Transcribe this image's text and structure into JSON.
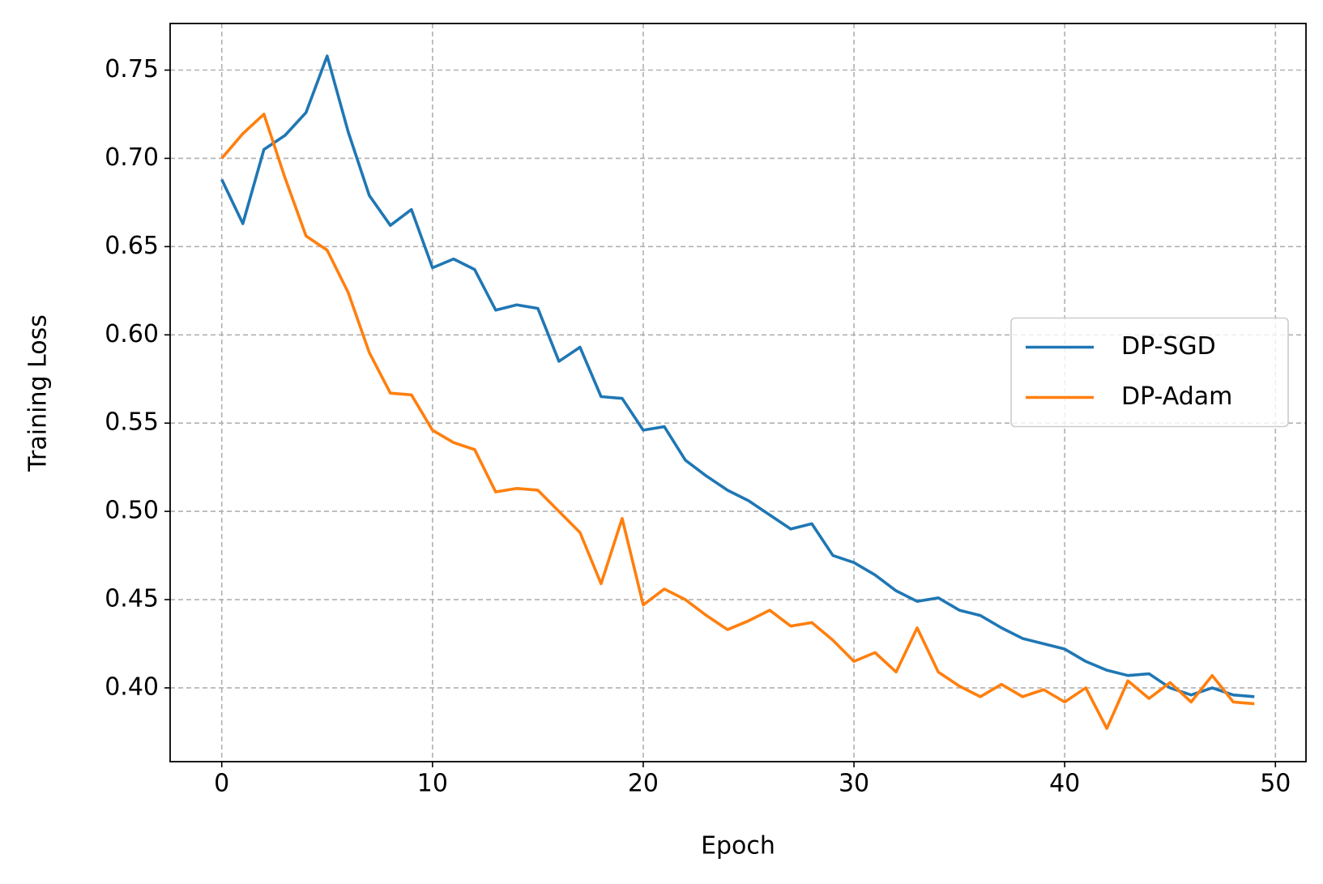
{
  "chart_data": {
    "type": "line",
    "x_label": "Epoch",
    "y_label": "Training Loss",
    "x": [
      0,
      1,
      2,
      3,
      4,
      5,
      6,
      7,
      8,
      9,
      10,
      11,
      12,
      13,
      14,
      15,
      16,
      17,
      18,
      19,
      20,
      21,
      22,
      23,
      24,
      25,
      26,
      27,
      28,
      29,
      30,
      31,
      32,
      33,
      34,
      35,
      36,
      37,
      38,
      39,
      40,
      41,
      42,
      43,
      44,
      45,
      46,
      47,
      48,
      49
    ],
    "series": [
      {
        "name": "DP-SGD",
        "color": "#1f77b4",
        "values": [
          0.688,
          0.663,
          0.705,
          0.713,
          0.726,
          0.758,
          0.715,
          0.679,
          0.662,
          0.671,
          0.638,
          0.643,
          0.637,
          0.614,
          0.617,
          0.615,
          0.585,
          0.593,
          0.565,
          0.564,
          0.546,
          0.548,
          0.529,
          0.52,
          0.512,
          0.506,
          0.498,
          0.49,
          0.493,
          0.475,
          0.471,
          0.464,
          0.455,
          0.449,
          0.451,
          0.444,
          0.441,
          0.434,
          0.428,
          0.425,
          0.422,
          0.415,
          0.41,
          0.407,
          0.408,
          0.4,
          0.396,
          0.4,
          0.396,
          0.395
        ]
      },
      {
        "name": "DP-Adam",
        "color": "#ff7f0e",
        "values": [
          0.7,
          0.714,
          0.725,
          0.689,
          0.656,
          0.648,
          0.624,
          0.59,
          0.567,
          0.566,
          0.546,
          0.539,
          0.535,
          0.511,
          0.513,
          0.512,
          0.5,
          0.488,
          0.459,
          0.496,
          0.447,
          0.456,
          0.45,
          0.441,
          0.433,
          0.438,
          0.444,
          0.435,
          0.437,
          0.427,
          0.415,
          0.42,
          0.409,
          0.434,
          0.409,
          0.401,
          0.395,
          0.402,
          0.395,
          0.399,
          0.392,
          0.4,
          0.377,
          0.404,
          0.394,
          0.403,
          0.392,
          0.407,
          0.392,
          0.391
        ]
      }
    ],
    "xlim": [
      -2.45,
      51.45
    ],
    "xticks": [
      0,
      10,
      20,
      30,
      40,
      50
    ],
    "ylim": [
      0.3582,
      0.7764
    ],
    "yticks": [
      {
        "value": 0.4,
        "label": "0.40"
      },
      {
        "value": 0.45,
        "label": "0.45"
      },
      {
        "value": 0.5,
        "label": "0.50"
      },
      {
        "value": 0.55,
        "label": "0.55"
      },
      {
        "value": 0.6,
        "label": "0.60"
      },
      {
        "value": 0.65,
        "label": "0.65"
      },
      {
        "value": 0.7,
        "label": "0.70"
      },
      {
        "value": 0.75,
        "label": "0.75"
      }
    ],
    "grid": true,
    "legend": "right"
  }
}
